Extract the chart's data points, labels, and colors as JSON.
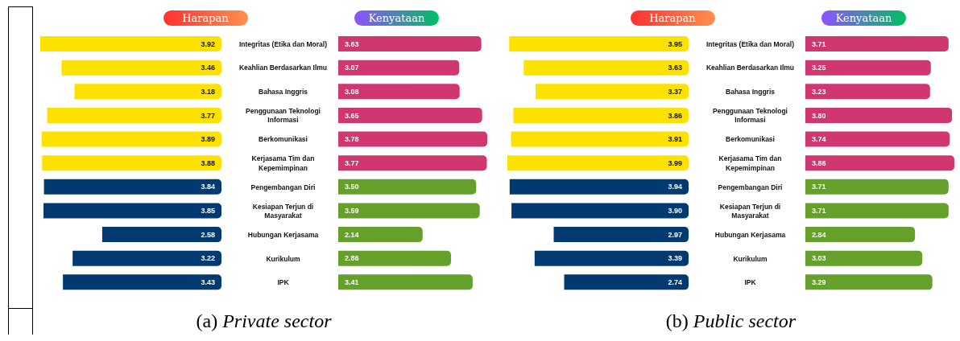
{
  "chart_data": [
    {
      "type": "bar",
      "orientation": "horizontal",
      "title": "(a) Private sector",
      "legend": "top",
      "categories": [
        "Integritas (Etika dan Moral)",
        "Keahlian Berdasarkan Ilmu",
        "Bahasa Inggris",
        "Penggunaan Teknologi Informasi",
        "Berkomunikasi",
        "Kerjasama Tim dan Kepemimpinan",
        "Pengembangan Diri",
        "Kesiapan Terjun di Masyarakat",
        "Hubungan Kerjasama",
        "Kurikulum",
        "IPK"
      ],
      "series": [
        {
          "name": "Harapan",
          "colors": [
            "#fde200",
            "#fde200",
            "#fde200",
            "#fde200",
            "#fde200",
            "#fde200",
            "#003a70",
            "#003a70",
            "#003a70",
            "#003a70",
            "#003a70"
          ],
          "values": [
            3.92,
            3.46,
            3.18,
            3.77,
            3.89,
            3.88,
            3.84,
            3.85,
            2.58,
            3.22,
            3.43
          ],
          "value_labels": [
            "3.92",
            "3.46",
            "3.18",
            "3.77",
            "3.89",
            "3.88",
            "3.84",
            "3.85",
            "2.58",
            "3.22",
            "3.43"
          ]
        }
      ]
    },
    {
      "type": "bar",
      "orientation": "horizontal",
      "legend": "top",
      "categories": [
        null,
        null,
        null,
        null,
        null,
        null,
        null,
        null,
        null,
        null,
        null
      ],
      "series": [
        {
          "name": "Kenyataan",
          "colors": [
            "#d0366f",
            "#d0366f",
            "#d0366f",
            "#d0366f",
            "#d0366f",
            "#d0366f",
            "#64a02a",
            "#64a02a",
            "#64a02a",
            "#64a02a",
            "#64a02a"
          ],
          "values": [
            3.63,
            3.07,
            3.08,
            3.65,
            3.78,
            3.77,
            3.5,
            3.59,
            2.14,
            2.86,
            3.41
          ],
          "value_labels": [
            "3.63",
            "3.07",
            "3.08",
            "3.65",
            "3.78",
            "3.77",
            "3.50",
            "3.59",
            "2.14",
            "2.86",
            "3.41"
          ]
        }
      ]
    },
    {
      "type": "bar",
      "orientation": "horizontal",
      "title": "(b) Public sector",
      "legend": "top",
      "categories": [
        "Integritas (Etika dan Moral)",
        "Keahlian Berdasarkan Ilmu",
        "Bahasa Inggris",
        "Penggunaan Teknologi Informasi",
        "Berkomunikasi",
        "Kerjasama Tim dan Kepemimpinan",
        "Pengembangan Diri",
        "Kesiapan Terjun di Masyarakat",
        "Hubungan Kerjasama",
        "Kurikulum",
        "IPK"
      ],
      "series": [
        {
          "name": "Harapan",
          "colors": [
            "#fde200",
            "#fde200",
            "#fde200",
            "#fde200",
            "#fde200",
            "#fde200",
            "#003a70",
            "#003a70",
            "#003a70",
            "#003a70",
            "#003a70"
          ],
          "values": [
            3.95,
            3.63,
            3.37,
            3.86,
            3.91,
            3.99,
            3.94,
            3.9,
            2.97,
            3.39,
            2.74
          ],
          "value_labels": [
            "3.95",
            "3.63",
            "3.37",
            "3.86",
            "3.91",
            "3.99",
            "3.94",
            "3.90",
            "2.97",
            "3.39",
            "2.74"
          ]
        }
      ]
    },
    {
      "type": "bar",
      "orientation": "horizontal",
      "legend": "top",
      "categories": [
        null,
        null,
        null,
        null,
        null,
        null,
        null,
        null,
        null,
        null,
        null
      ],
      "series": [
        {
          "name": "Kenyataan",
          "colors": [
            "#d0366f",
            "#d0366f",
            "#d0366f",
            "#d0366f",
            "#d0366f",
            "#d0366f",
            "#64a02a",
            "#64a02a",
            "#64a02a",
            "#64a02a",
            "#64a02a"
          ],
          "values": [
            3.71,
            3.25,
            3.23,
            3.8,
            3.74,
            3.86,
            3.71,
            3.71,
            2.84,
            3.03,
            3.29
          ],
          "value_labels": [
            "3.71",
            "3.25",
            "3.23",
            "3.80",
            "3.74",
            "3.86",
            "3.71",
            "3.71",
            "2.84",
            "3.03",
            "3.29"
          ]
        }
      ]
    }
  ]
}
